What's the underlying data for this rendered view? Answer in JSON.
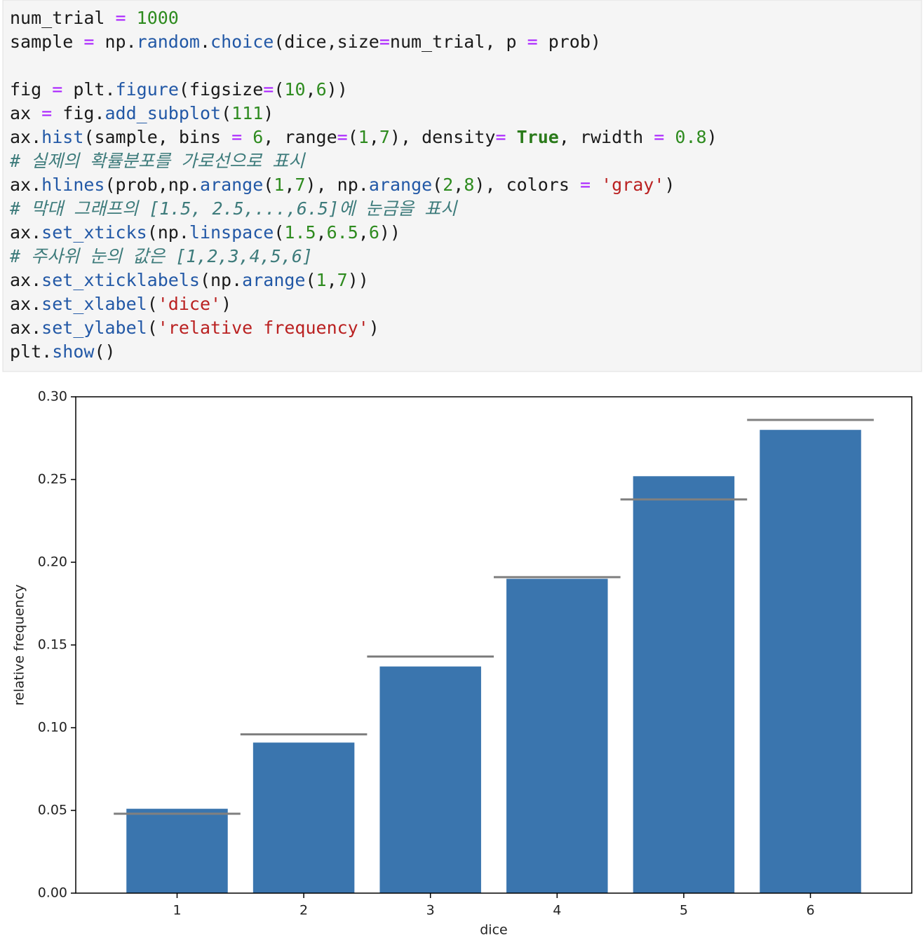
{
  "code": [
    [
      "num_trial = 1000",
      "sample = np.random.choice(dice,size=num_trial, p = prob)"
    ],
    [
      "fig = plt.figure(figsize=(10,6))",
      "ax = fig.add_subplot(111)",
      "ax.hist(sample, bins = 6, range=(1,7), density= True, rwidth = 0.8)",
      "# 실제의 확률분포를 가로선으로 표시",
      "ax.hlines(prob,np.arange(1,7), np.arange(2,8), colors = 'gray')",
      "# 막대 그래프의 [1.5, 2.5,...,6.5]에 눈금을 표시",
      "ax.set_xticks(np.linspace(1.5,6.5,6))",
      "# 주사위 눈의 값은 [1,2,3,4,5,6]",
      "ax.set_xticklabels(np.arange(1,7))",
      "ax.set_xlabel('dice')",
      "ax.set_ylabel('relative frequency')",
      "plt.show()"
    ]
  ],
  "chart_data": {
    "type": "histogram",
    "bins": [
      1,
      2,
      3,
      4,
      5,
      6,
      7
    ],
    "values": [
      0.051,
      0.091,
      0.137,
      0.19,
      0.252,
      0.28
    ],
    "color": "#3a75ae",
    "hlines": {
      "values": [
        0.048,
        0.096,
        0.143,
        0.191,
        0.238,
        0.286
      ],
      "xmin": [
        1,
        2,
        3,
        4,
        5,
        6
      ],
      "xmax": [
        2,
        3,
        4,
        5,
        6,
        7
      ],
      "color": "gray"
    },
    "xlabel": "dice",
    "ylabel": "relative frequency",
    "xlim": [
      0.7,
      7.3
    ],
    "ylim": [
      0,
      0.3
    ],
    "xticks": [
      {
        "value": 1.5,
        "label": "1"
      },
      {
        "value": 2.5,
        "label": "2"
      },
      {
        "value": 3.5,
        "label": "3"
      },
      {
        "value": 4.5,
        "label": "4"
      },
      {
        "value": 5.5,
        "label": "5"
      },
      {
        "value": 6.5,
        "label": "6"
      }
    ],
    "yticks": [
      {
        "value": 0,
        "label": "0.00"
      },
      {
        "value": 0.05,
        "label": "0.05"
      },
      {
        "value": 0.1,
        "label": "0.10"
      },
      {
        "value": 0.15,
        "label": "0.15"
      },
      {
        "value": 0.2,
        "label": "0.20"
      },
      {
        "value": 0.25,
        "label": "0.25"
      },
      {
        "value": 0.3,
        "label": "0.30"
      }
    ]
  }
}
